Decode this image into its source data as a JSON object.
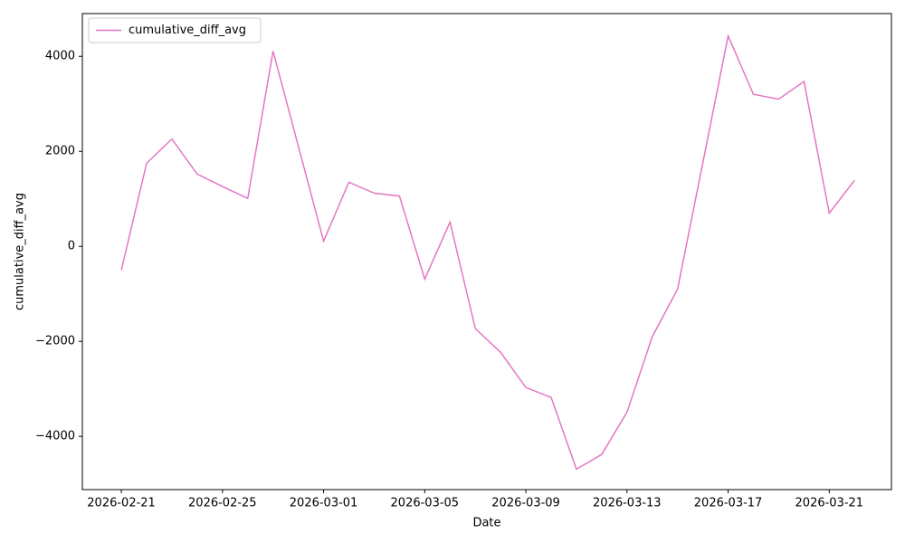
{
  "chart_data": {
    "type": "line",
    "x_label": "Date",
    "y_label": "cumulative_diff_avg",
    "x": [
      "2026-02-21",
      "2026-02-22",
      "2026-02-23",
      "2026-02-24",
      "2026-02-25",
      "2026-02-26",
      "2026-02-27",
      "2026-02-28",
      "2026-03-01",
      "2026-03-02",
      "2026-03-03",
      "2026-03-04",
      "2026-03-05",
      "2026-03-06",
      "2026-03-07",
      "2026-03-08",
      "2026-03-09",
      "2026-03-10",
      "2026-03-11",
      "2026-03-12",
      "2026-03-13",
      "2026-03-14",
      "2026-03-15",
      "2026-03-16",
      "2026-03-17",
      "2026-03-18",
      "2026-03-19",
      "2026-03-20",
      "2026-03-21",
      "2026-03-22"
    ],
    "series": [
      {
        "name": "cumulative_diff_avg",
        "color": "#e377c2",
        "values": [
          -500,
          1750,
          2260,
          1520,
          1260,
          1010,
          4110,
          2110,
          110,
          1350,
          1120,
          1060,
          -690,
          510,
          -1730,
          -2230,
          -2970,
          -3180,
          -4690,
          -4380,
          -3490,
          -1900,
          -900,
          1760,
          4430,
          3200,
          3100,
          3470,
          700,
          1390
        ]
      }
    ],
    "xlim": [
      "2026-02-19T11:00",
      "2026-03-23T11:00"
    ],
    "xticks": [
      "2026-02-21",
      "2026-02-25",
      "2026-03-01",
      "2026-03-05",
      "2026-03-09",
      "2026-03-13",
      "2026-03-17",
      "2026-03-21"
    ],
    "ylim": [
      -5120,
      4900
    ],
    "yticks": [
      {
        "value": -4000,
        "label": "−4000"
      },
      {
        "value": -2000,
        "label": "−2000"
      },
      0,
      2000,
      4000
    ],
    "legend": "upper left",
    "grid": false
  }
}
